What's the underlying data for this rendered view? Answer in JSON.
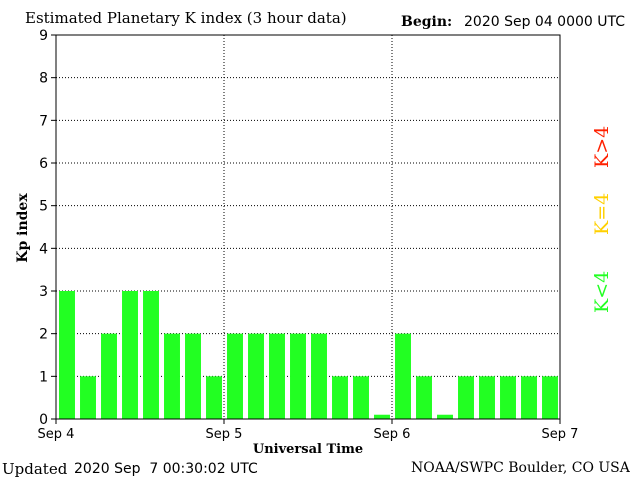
{
  "header": {
    "title": "Estimated Planetary K index (3 hour data)",
    "begin_label": "Begin:",
    "begin_value": "2020 Sep 04 0000 UTC"
  },
  "footer": {
    "updated_label": "Updated",
    "updated_value": "2020 Sep  7 00:30:02 UTC",
    "source": "NOAA/SWPC Boulder, CO USA"
  },
  "legend": {
    "high": {
      "text": "K>4",
      "color": "#ff2000"
    },
    "mid": {
      "text": "K=4",
      "color": "#ffd000"
    },
    "low": {
      "text": "K<4",
      "color": "#22ff22"
    }
  },
  "chart_data": {
    "type": "bar",
    "title": "Estimated Planetary K index (3 hour data)",
    "xlabel": "Universal Time",
    "ylabel": "Kp index",
    "ylim": [
      0,
      9
    ],
    "yticks": [
      "0",
      "1",
      "2",
      "3",
      "4",
      "5",
      "6",
      "7",
      "8",
      "9"
    ],
    "xticks": [
      "Sep 4",
      "Sep 5",
      "Sep 6",
      "Sep 7"
    ],
    "grid": true,
    "bar_color": "#22ff22",
    "values": [
      3,
      1,
      2,
      3,
      3,
      2,
      2,
      1,
      2,
      2,
      2,
      2,
      2,
      1,
      1,
      0.1,
      2,
      1,
      0.1,
      1,
      1,
      1,
      1,
      1
    ]
  }
}
